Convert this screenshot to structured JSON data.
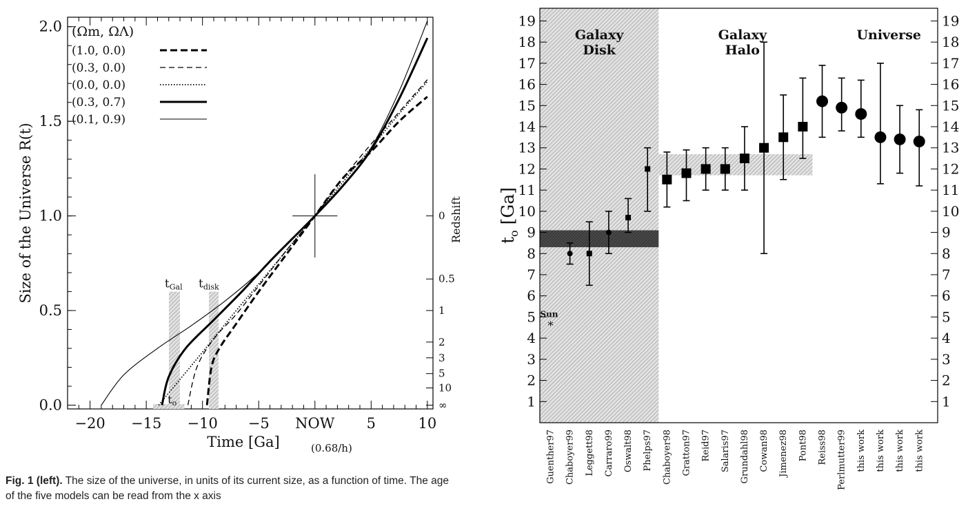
{
  "left_chart": {
    "type": "line",
    "xlabel": "Time [Ga]",
    "xlabel_sub": "(0.68/h)",
    "ylabel": "Size of the Universe R(t)",
    "right_axis_label": "Redshift",
    "xlim": [
      -22,
      10.5
    ],
    "ylim": [
      -0.02,
      2.05
    ],
    "x_ticks": [
      {
        "value": -20,
        "label": "−20"
      },
      {
        "value": -15,
        "label": "−15"
      },
      {
        "value": -10,
        "label": "−10"
      },
      {
        "value": -5,
        "label": "−5"
      },
      {
        "value": 0,
        "label": "NOW"
      },
      {
        "value": 5,
        "label": "5"
      },
      {
        "value": 10,
        "label": "10"
      }
    ],
    "y_ticks": [
      {
        "value": 0.0,
        "label": "0.0"
      },
      {
        "value": 0.5,
        "label": "0.5"
      },
      {
        "value": 1.0,
        "label": "1.0"
      },
      {
        "value": 1.5,
        "label": "1.5"
      },
      {
        "value": 2.0,
        "label": "2.0"
      }
    ],
    "redshift_ticks": [
      {
        "value": 0,
        "label": "0"
      },
      {
        "value": 0.5,
        "label": "0.5"
      },
      {
        "value": 1,
        "label": "1"
      },
      {
        "value": 2,
        "label": "2"
      },
      {
        "value": 3,
        "label": "3"
      },
      {
        "value": 5,
        "label": "5"
      },
      {
        "value": 10,
        "label": "10"
      },
      {
        "value": 1000000,
        "label": "∞"
      }
    ],
    "legend_header": "(Ωm, ΩΛ)",
    "series": [
      {
        "name": "(1.0, 0.0)",
        "style": "thick-dashed",
        "points": [
          [
            -9.6,
            0.0
          ],
          [
            -9.2,
            0.2
          ],
          [
            -8.5,
            0.3
          ],
          [
            -7,
            0.43
          ],
          [
            -5,
            0.6
          ],
          [
            -2.5,
            0.8
          ],
          [
            0,
            1.0
          ],
          [
            2.5,
            1.2
          ],
          [
            5,
            1.34
          ],
          [
            7.5,
            1.5
          ],
          [
            10,
            1.63
          ]
        ]
      },
      {
        "name": "(0.3, 0.0)",
        "style": "thin-dashed",
        "points": [
          [
            -11.3,
            0.0
          ],
          [
            -10.5,
            0.2
          ],
          [
            -9,
            0.35
          ],
          [
            -7,
            0.48
          ],
          [
            -5,
            0.63
          ],
          [
            -2.5,
            0.82
          ],
          [
            0,
            1.0
          ],
          [
            2.5,
            1.2
          ],
          [
            5,
            1.38
          ],
          [
            7.5,
            1.55
          ],
          [
            10,
            1.72
          ]
        ]
      },
      {
        "name": "(0.0, 0.0)",
        "style": "dotted",
        "points": [
          [
            -13.9,
            0.0
          ],
          [
            -10,
            0.28
          ],
          [
            -7,
            0.5
          ],
          [
            -5,
            0.64
          ],
          [
            -2.5,
            0.82
          ],
          [
            0,
            1.0
          ],
          [
            2.5,
            1.18
          ],
          [
            5,
            1.36
          ],
          [
            7.5,
            1.54
          ],
          [
            10,
            1.71
          ]
        ]
      },
      {
        "name": "(0.3, 0.7)",
        "style": "thick-solid",
        "points": [
          [
            -13.6,
            0.0
          ],
          [
            -13,
            0.15
          ],
          [
            -11.5,
            0.3
          ],
          [
            -9,
            0.45
          ],
          [
            -6.5,
            0.6
          ],
          [
            -4,
            0.76
          ],
          [
            -2,
            0.88
          ],
          [
            0,
            1.0
          ],
          [
            2.5,
            1.16
          ],
          [
            5,
            1.35
          ],
          [
            7.5,
            1.62
          ],
          [
            10,
            1.94
          ]
        ]
      },
      {
        "name": "(0.1, 0.9)",
        "style": "thin-solid",
        "points": [
          [
            -19,
            0.0
          ],
          [
            -17,
            0.16
          ],
          [
            -14,
            0.3
          ],
          [
            -11,
            0.42
          ],
          [
            -8,
            0.55
          ],
          [
            -5,
            0.7
          ],
          [
            -2.5,
            0.85
          ],
          [
            0,
            1.0
          ],
          [
            2.5,
            1.16
          ],
          [
            5,
            1.36
          ],
          [
            7.5,
            1.66
          ],
          [
            10,
            2.03
          ]
        ]
      }
    ],
    "annotations": {
      "t_gal": {
        "label": "tGal",
        "main": "t",
        "sub": "Gal",
        "x": -12.5
      },
      "t_disk": {
        "label": "tdisk",
        "main": "t",
        "sub": "disk",
        "x": -9
      },
      "t_o": {
        "label": "to",
        "main": "t",
        "sub": "o"
      }
    }
  },
  "right_chart": {
    "type": "scatter",
    "ylabel": "to [Ga]",
    "ylabel_main": "t",
    "ylabel_sub": "o",
    "ylim": [
      0,
      19.6
    ],
    "y_ticks": [
      1,
      2,
      3,
      4,
      5,
      6,
      7,
      8,
      9,
      10,
      11,
      12,
      13,
      14,
      15,
      16,
      17,
      18,
      19
    ],
    "region_labels": [
      {
        "line1": "Galaxy",
        "line2": "Disk"
      },
      {
        "line1": "Galaxy",
        "line2": "Halo"
      },
      {
        "line1": "Universe",
        "line2": ""
      }
    ],
    "sun_label": "Sun",
    "bands": [
      {
        "name": "disk",
        "ymin": 8.3,
        "ymax": 9.1
      },
      {
        "name": "halo",
        "ymin": 11.7,
        "ymax": 12.7
      }
    ],
    "points": [
      {
        "label": "Guenther97",
        "value": 4.6,
        "lo": 4.6,
        "hi": 4.6,
        "marker": "star"
      },
      {
        "label": "Chaboyer99",
        "value": 8.0,
        "lo": 7.5,
        "hi": 8.5,
        "marker": "small-circle"
      },
      {
        "label": "Leggett98",
        "value": 8.0,
        "lo": 6.5,
        "hi": 9.5,
        "marker": "small-square"
      },
      {
        "label": "Carraro99",
        "value": 9.0,
        "lo": 8.0,
        "hi": 10.0,
        "marker": "small-circle"
      },
      {
        "label": "Oswalt98",
        "value": 9.7,
        "lo": 9.0,
        "hi": 10.6,
        "marker": "small-square"
      },
      {
        "label": "Phelps97",
        "value": 12.0,
        "lo": 10.0,
        "hi": 13.0,
        "marker": "small-square"
      },
      {
        "label": "Chaboyer98",
        "value": 11.5,
        "lo": 10.2,
        "hi": 12.8,
        "marker": "square"
      },
      {
        "label": "Gratton97",
        "value": 11.8,
        "lo": 10.5,
        "hi": 12.9,
        "marker": "square"
      },
      {
        "label": "Reid97",
        "value": 12.0,
        "lo": 11.0,
        "hi": 13.0,
        "marker": "square"
      },
      {
        "label": "Salaris97",
        "value": 12.0,
        "lo": 11.0,
        "hi": 13.0,
        "marker": "square"
      },
      {
        "label": "Grundahl98",
        "value": 12.5,
        "lo": 11.0,
        "hi": 14.0,
        "marker": "square"
      },
      {
        "label": "Cowan98",
        "value": 13.0,
        "lo": 8.0,
        "hi": 18.0,
        "marker": "square"
      },
      {
        "label": "Jimenez98",
        "value": 13.5,
        "lo": 11.5,
        "hi": 15.5,
        "marker": "square"
      },
      {
        "label": "Pont98",
        "value": 14.0,
        "lo": 12.5,
        "hi": 16.3,
        "marker": "square"
      },
      {
        "label": "Reiss98",
        "value": 15.2,
        "lo": 13.5,
        "hi": 16.9,
        "marker": "circle"
      },
      {
        "label": "Perlmutter99",
        "value": 14.9,
        "lo": 13.8,
        "hi": 16.3,
        "marker": "circle"
      },
      {
        "label": "this work",
        "value": 14.6,
        "lo": 13.5,
        "hi": 16.2,
        "marker": "circle"
      },
      {
        "label": "this work",
        "value": 13.5,
        "lo": 11.3,
        "hi": 17.0,
        "marker": "circle"
      },
      {
        "label": "this work",
        "value": 13.4,
        "lo": 11.8,
        "hi": 15.0,
        "marker": "circle"
      },
      {
        "label": "this work",
        "value": 13.3,
        "lo": 11.2,
        "hi": 14.8,
        "marker": "circle"
      }
    ]
  },
  "caption": {
    "bold": "Fig. 1 (left).",
    "text": "The size of the universe, in units of its current size, as a function of time. The age of the five models can be read from the x axis"
  }
}
